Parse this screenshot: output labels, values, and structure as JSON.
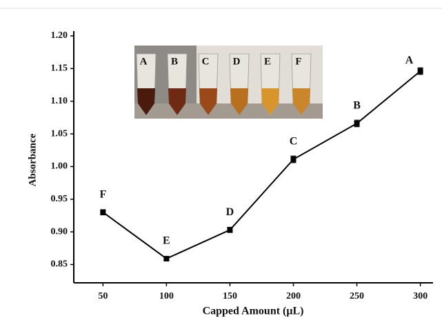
{
  "chart_data": {
    "type": "line",
    "x_label": "Capped Amount (μL)",
    "y_label": "Absorbance",
    "x": [
      50,
      100,
      150,
      200,
      250,
      300
    ],
    "values": [
      0.93,
      0.859,
      0.903,
      1.011,
      1.066,
      1.146
    ],
    "errors": [
      0.004,
      0.003,
      0.004,
      0.005,
      0.005,
      0.005
    ],
    "point_labels": [
      "F",
      "E",
      "D",
      "C",
      "B",
      "A"
    ],
    "color": "#000000",
    "xlim": [
      27,
      310
    ],
    "ylim": [
      0.822,
      1.2
    ],
    "xticks": [
      50,
      100,
      150,
      200,
      250,
      300
    ],
    "yticks": [
      {
        "value": 0.85,
        "label": "0.85"
      },
      {
        "value": 0.9,
        "label": "0.90"
      },
      {
        "value": 0.95,
        "label": "0.95"
      },
      {
        "value": 1.0,
        "label": "1.00"
      },
      {
        "value": 1.05,
        "label": "1.05"
      },
      {
        "value": 1.1,
        "label": "1.10"
      },
      {
        "value": 1.15,
        "label": "1.15"
      },
      {
        "value": 1.2,
        "label": "1.20"
      }
    ],
    "inset_labels": [
      "A",
      "B",
      "C",
      "D",
      "E",
      "F"
    ]
  }
}
